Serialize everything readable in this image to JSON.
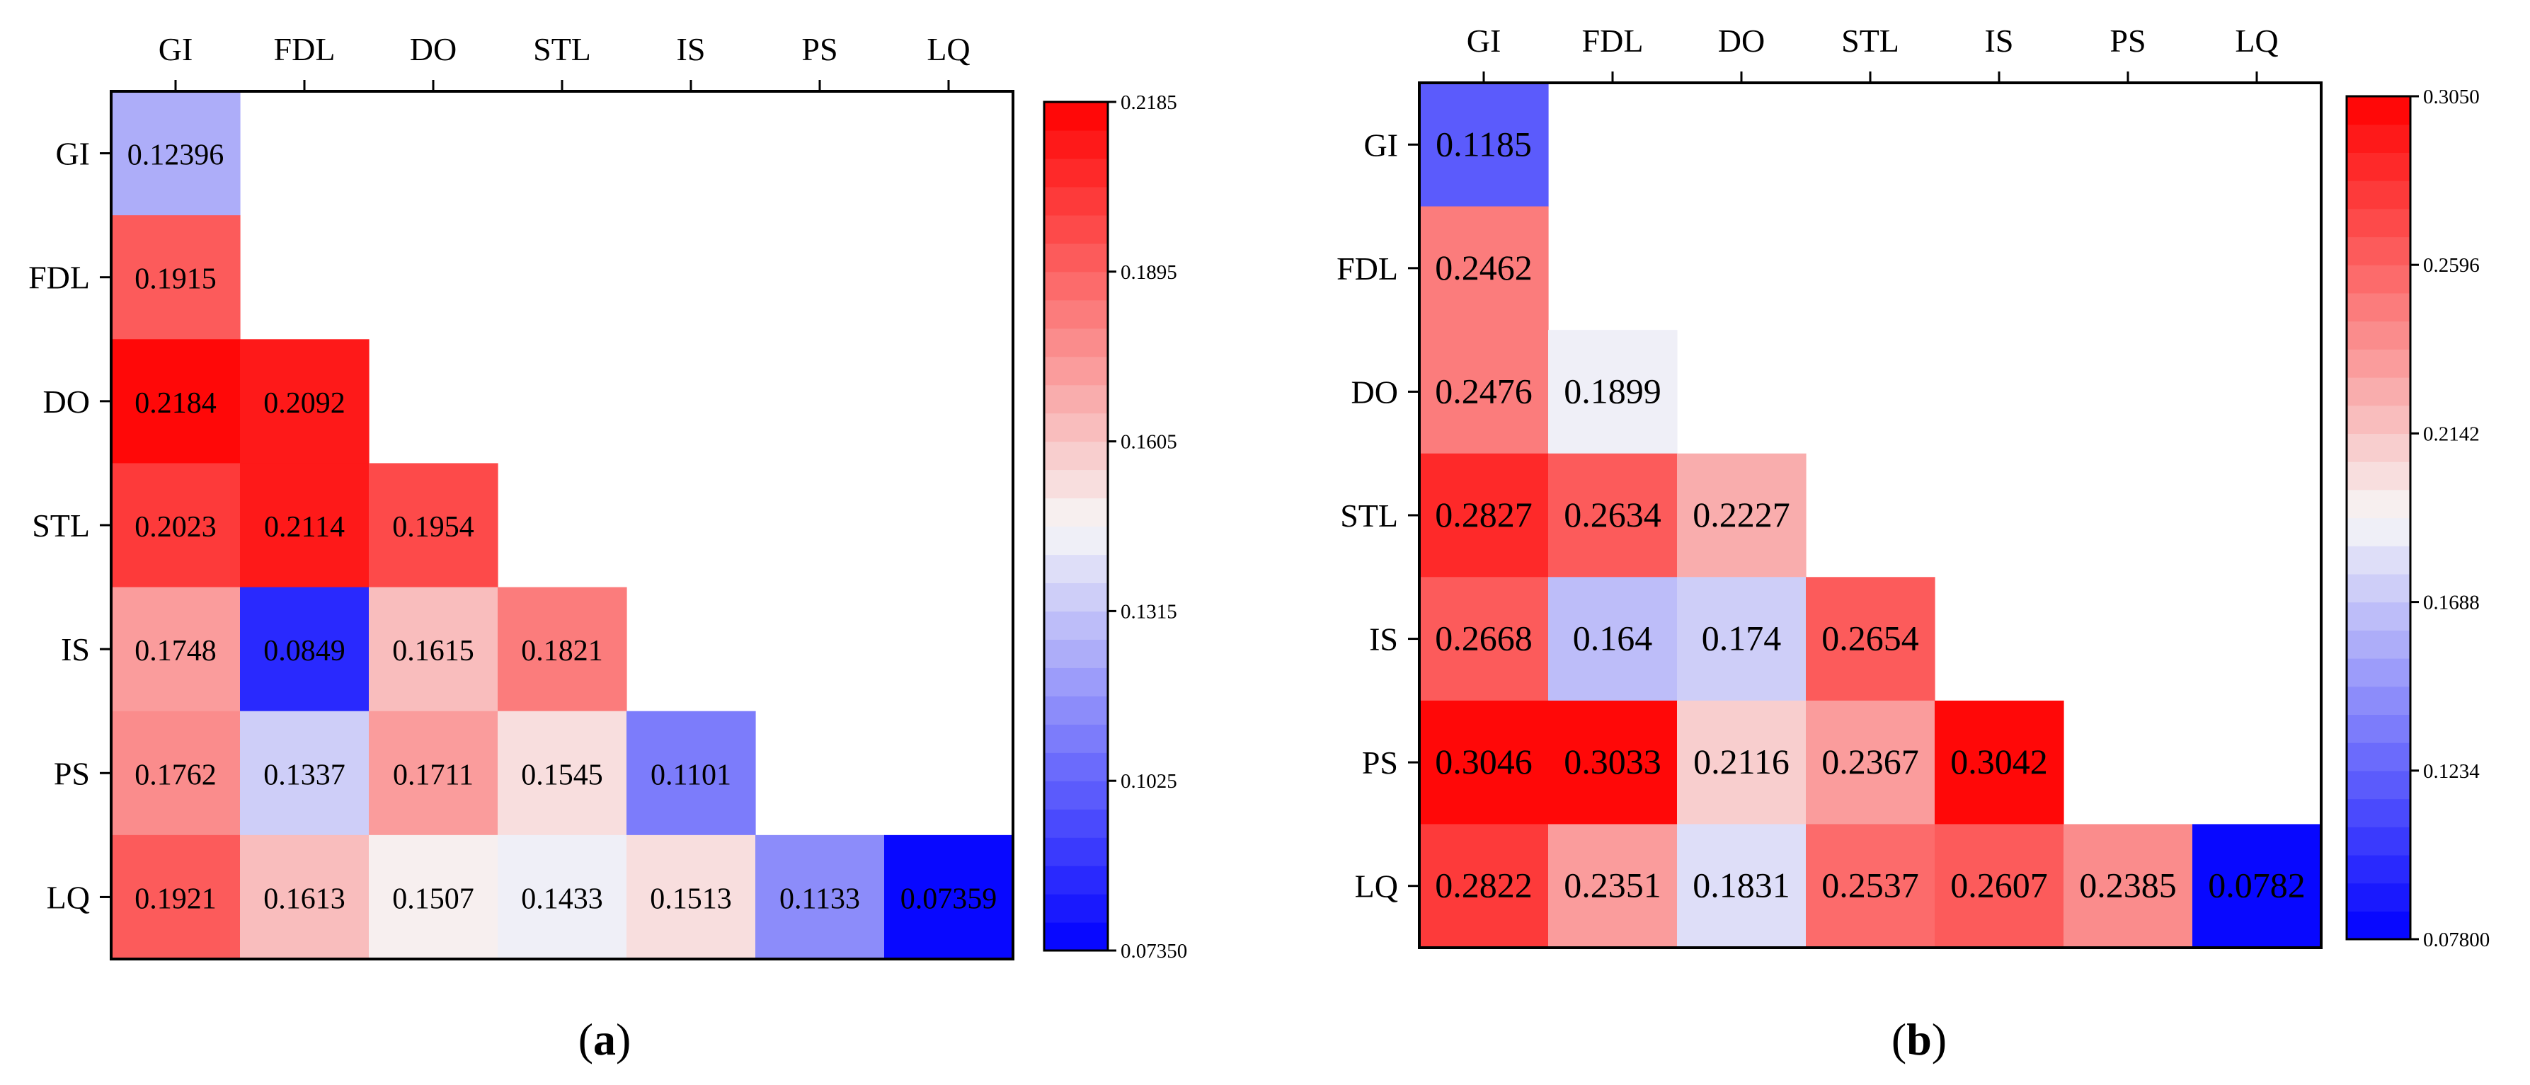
{
  "chart_data": [
    {
      "type": "heatmap",
      "panel_label": "a",
      "variables": [
        "GI",
        "FDL",
        "DO",
        "STL",
        "IS",
        "PS",
        "LQ"
      ],
      "matrix": [
        [
          "0.12396",
          null,
          null,
          null,
          null,
          null,
          null
        ],
        [
          "0.1915",
          null,
          null,
          null,
          null,
          null,
          null
        ],
        [
          "0.2184",
          "0.2092",
          null,
          null,
          null,
          null,
          null
        ],
        [
          "0.2023",
          "0.2114",
          "0.1954",
          null,
          null,
          null,
          null
        ],
        [
          "0.1748",
          "0.0849",
          "0.1615",
          "0.1821",
          null,
          null,
          null
        ],
        [
          "0.1762",
          "0.1337",
          "0.1711",
          "0.1545",
          "0.1101",
          null,
          null
        ],
        [
          "0.1921",
          "0.1613",
          "0.1507",
          "0.1433",
          "0.1513",
          "0.1133",
          "0.07359"
        ]
      ],
      "colorbar": {
        "min": 0.0735,
        "max": 0.2185,
        "steps": 30,
        "ticks": [
          "0.07350",
          "0.1025",
          "0.1315",
          "0.1605",
          "0.1895",
          "0.2185"
        ],
        "low_color": "#0000ff",
        "mid_color": "#f7f7f7",
        "high_color": "#ff0000"
      }
    },
    {
      "type": "heatmap",
      "panel_label": "b",
      "variables": [
        "GI",
        "FDL",
        "DO",
        "STL",
        "IS",
        "PS",
        "LQ"
      ],
      "matrix": [
        [
          "0.1185",
          null,
          null,
          null,
          null,
          null,
          null
        ],
        [
          "0.2462",
          null,
          null,
          null,
          null,
          null,
          null
        ],
        [
          "0.2476",
          "0.1899",
          null,
          null,
          null,
          null,
          null
        ],
        [
          "0.2827",
          "0.2634",
          "0.2227",
          null,
          null,
          null,
          null
        ],
        [
          "0.2668",
          "0.164",
          "0.174",
          "0.2654",
          null,
          null,
          null
        ],
        [
          "0.3046",
          "0.3033",
          "0.2116",
          "0.2367",
          "0.3042",
          null,
          null
        ],
        [
          "0.2822",
          "0.2351",
          "0.1831",
          "0.2537",
          "0.2607",
          "0.2385",
          "0.0782"
        ]
      ],
      "colorbar": {
        "min": 0.078,
        "max": 0.305,
        "steps": 30,
        "ticks": [
          "0.07800",
          "0.1234",
          "0.1688",
          "0.2142",
          "0.2596",
          "0.3050"
        ],
        "low_color": "#0000ff",
        "mid_color": "#f7f7f7",
        "high_color": "#ff0000"
      }
    }
  ]
}
